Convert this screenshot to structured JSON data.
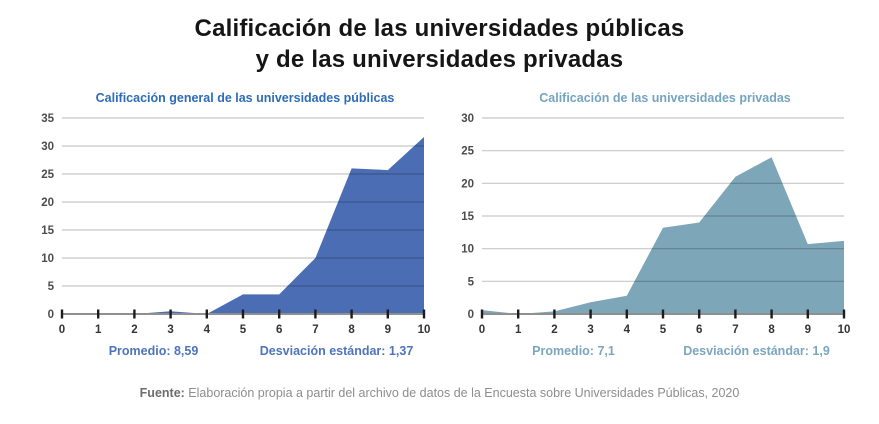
{
  "title": {
    "line1": "Calificación de las universidades públicas",
    "line2": "y de las universidades privadas"
  },
  "chart_data": [
    {
      "type": "area",
      "title": "Calificación general de las universidades públicas",
      "x": [
        0,
        1,
        2,
        3,
        4,
        5,
        6,
        7,
        8,
        9,
        10
      ],
      "xtick_labels": [
        "0",
        "1",
        "2",
        "3",
        "4",
        "5",
        "6",
        "7",
        "8",
        "9",
        "10"
      ],
      "values": [
        0,
        0,
        0,
        0.5,
        0,
        3.5,
        3.5,
        10,
        26,
        25.7,
        31.6
      ],
      "ylim": [
        0,
        35
      ],
      "yticks": [
        0,
        5,
        10,
        15,
        20,
        25,
        30,
        35
      ],
      "grid": true,
      "legend": "none",
      "fill_color": "#4a6db4",
      "accent_color": "#2e6cb6",
      "stats_color": "#4e74ba",
      "stats": [
        {
          "text": "Promedio: 8,59"
        },
        {
          "text": "Desviación estándar: 1,37"
        }
      ]
    },
    {
      "type": "area",
      "title": "Calificación de las universidades privadas",
      "x": [
        0,
        1,
        2,
        3,
        4,
        5,
        6,
        7,
        8,
        9,
        10
      ],
      "xtick_labels": [
        "0",
        "1",
        "2",
        "3",
        "4",
        "5",
        "6",
        "7",
        "8",
        "9",
        "10"
      ],
      "values": [
        0.6,
        0,
        0.4,
        1.8,
        2.8,
        13.2,
        14,
        21,
        24,
        10.7,
        11.2
      ],
      "ylim": [
        0,
        30
      ],
      "yticks": [
        0,
        5,
        10,
        15,
        20,
        25,
        30
      ],
      "grid": true,
      "legend": "none",
      "fill_color": "#7da6b9",
      "accent_color": "#74a4c0",
      "stats_color": "#7ba6bd",
      "stats": [
        {
          "text": "Promedio: 7,1"
        },
        {
          "text": "Desviación estándar: 1,9"
        }
      ]
    }
  ],
  "footer": {
    "source_label": "Fuente:",
    "source_text": "Elaboración propia a partir del archivo de datos de la Encuesta sobre Universidades Públicas, 2020"
  }
}
